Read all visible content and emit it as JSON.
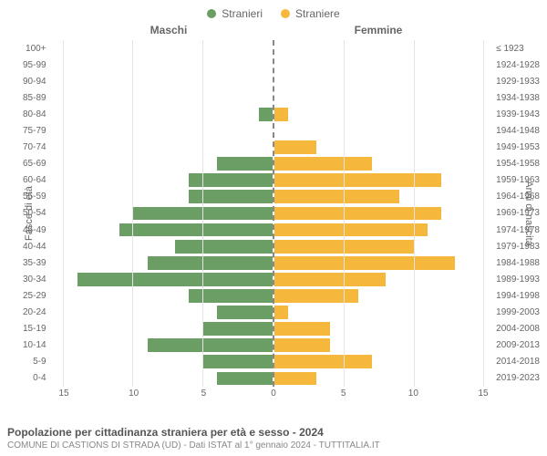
{
  "legend": {
    "male": {
      "label": "Stranieri",
      "color": "#6b9e64"
    },
    "female": {
      "label": "Straniere",
      "color": "#f5b83d"
    }
  },
  "column_headers": {
    "left": "Maschi",
    "right": "Femmine"
  },
  "axis_labels": {
    "left": "Fasce di età",
    "right": "Anni di nascita"
  },
  "chart": {
    "type": "population-pyramid",
    "xmax": 15,
    "xticks": [
      0,
      5,
      10,
      15
    ],
    "grid_color": "#e5e5e5",
    "center_line_color": "#888888",
    "background_color": "#ffffff",
    "tick_fontsize": 10,
    "label_fontsize": 11,
    "age_groups": [
      "100+",
      "95-99",
      "90-94",
      "85-89",
      "80-84",
      "75-79",
      "70-74",
      "65-69",
      "60-64",
      "55-59",
      "50-54",
      "45-49",
      "40-44",
      "35-39",
      "30-34",
      "25-29",
      "20-24",
      "15-19",
      "10-14",
      "5-9",
      "0-4"
    ],
    "birth_years": [
      "≤ 1923",
      "1924-1928",
      "1929-1933",
      "1934-1938",
      "1939-1943",
      "1944-1948",
      "1949-1953",
      "1954-1958",
      "1959-1963",
      "1964-1968",
      "1969-1973",
      "1974-1978",
      "1979-1983",
      "1984-1988",
      "1989-1993",
      "1994-1998",
      "1999-2003",
      "2004-2008",
      "2009-2013",
      "2014-2018",
      "2019-2023"
    ],
    "male_values": [
      0,
      0,
      0,
      0,
      1,
      0,
      0,
      4,
      6,
      6,
      10,
      11,
      7,
      9,
      14,
      6,
      4,
      5,
      9,
      5,
      4
    ],
    "female_values": [
      0,
      0,
      0,
      0,
      1,
      0,
      3,
      7,
      12,
      9,
      12,
      11,
      10,
      13,
      8,
      6,
      1,
      4,
      4,
      7,
      3
    ]
  },
  "footer": {
    "title": "Popolazione per cittadinanza straniera per età e sesso - 2024",
    "subtitle": "COMUNE DI CASTIONS DI STRADA (UD) - Dati ISTAT al 1° gennaio 2024 - TUTTITALIA.IT"
  }
}
